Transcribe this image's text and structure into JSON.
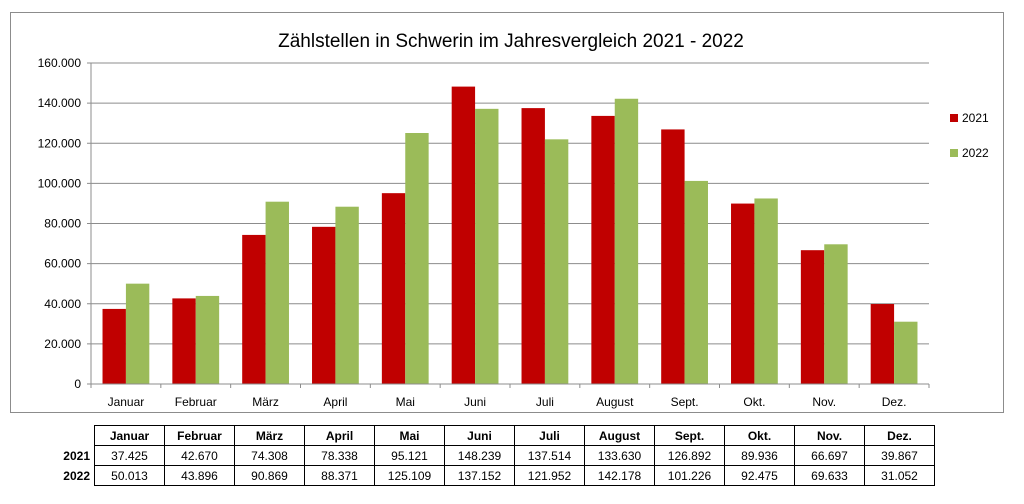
{
  "chart_data": {
    "type": "bar",
    "title": "Zählstellen in Schwerin im Jahresvergleich 2021 - 2022",
    "categories": [
      "Januar",
      "Februar",
      "März",
      "April",
      "Mai",
      "Juni",
      "Juli",
      "August",
      "Sept.",
      "Okt.",
      "Nov.",
      "Dez."
    ],
    "series": [
      {
        "name": "2021",
        "color": "#c00000",
        "values": [
          37425,
          42670,
          74308,
          78338,
          95121,
          148239,
          137514,
          133630,
          126892,
          89936,
          66697,
          39867
        ],
        "labels": [
          "37.425",
          "42.670",
          "74.308",
          "78.338",
          "95.121",
          "148.239",
          "137.514",
          "133.630",
          "126.892",
          "89.936",
          "66.697",
          "39.867"
        ]
      },
      {
        "name": "2022",
        "color": "#9bbb59",
        "values": [
          50013,
          43896,
          90869,
          88371,
          125109,
          137152,
          121952,
          142178,
          101226,
          92475,
          69633,
          31052
        ],
        "labels": [
          "50.013",
          "43.896",
          "90.869",
          "88.371",
          "125.109",
          "137.152",
          "121.952",
          "142.178",
          "101.226",
          "92.475",
          "69.633",
          "31.052"
        ]
      }
    ],
    "ylim": [
      0,
      160000
    ],
    "yticks": [
      "0",
      "20.000",
      "40.000",
      "60.000",
      "80.000",
      "100.000",
      "120.000",
      "140.000",
      "160.000"
    ],
    "grid": true,
    "legend_position": "right"
  }
}
